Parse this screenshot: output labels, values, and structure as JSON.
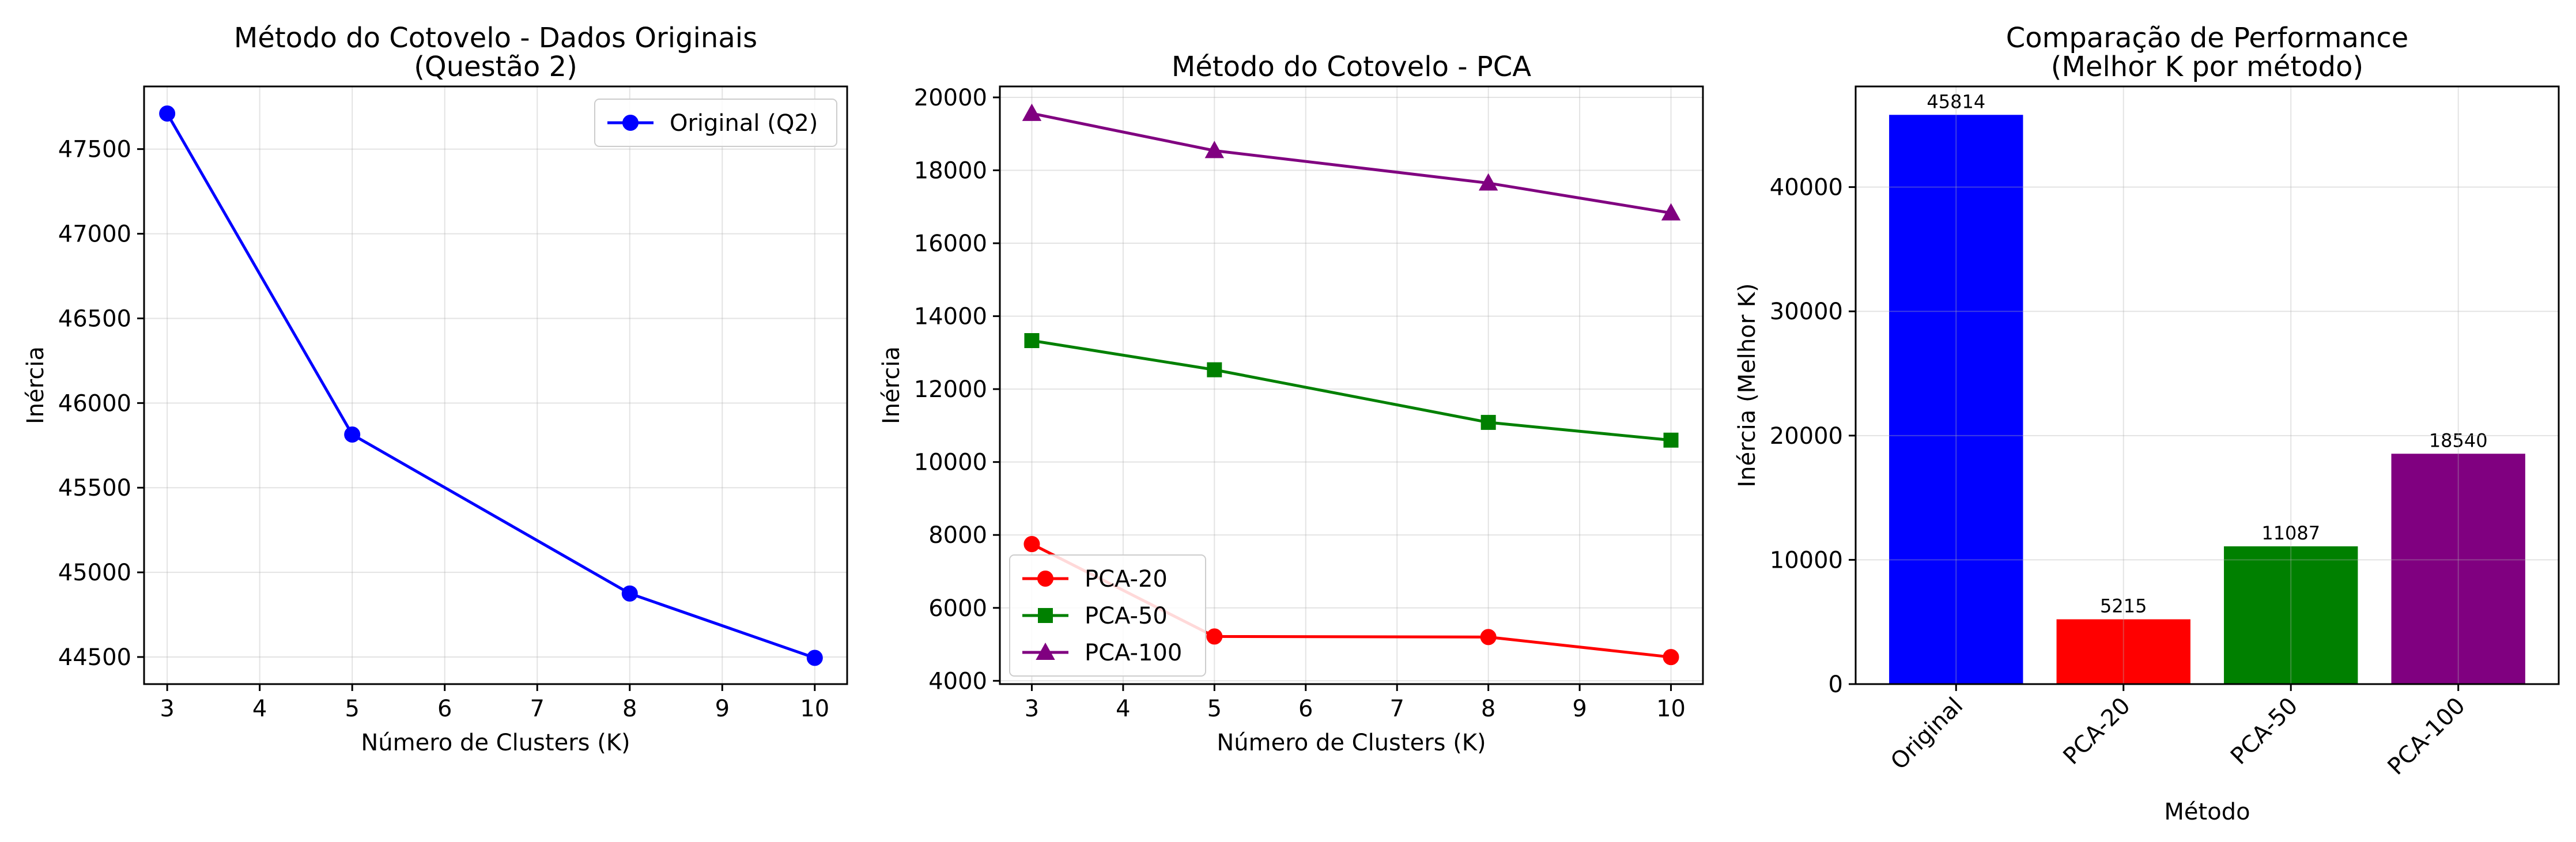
{
  "chart_data": [
    {
      "type": "line",
      "title_lines": [
        "Método do Cotovelo - Dados Originais",
        "(Questão 2)"
      ],
      "xlabel": "Número de Clusters (K)",
      "ylabel": "Inércia",
      "xlim": [
        2.75,
        10.35
      ],
      "ylim": [
        44340,
        47870
      ],
      "xticks": [
        3,
        4,
        5,
        6,
        7,
        8,
        9,
        10
      ],
      "yticks": [
        44500,
        45000,
        45500,
        46000,
        46500,
        47000,
        47500
      ],
      "grid": true,
      "legend_position": "upper right",
      "x": [
        3,
        5,
        8,
        10
      ],
      "series": [
        {
          "name": "Original (Q2)",
          "values": [
            47710,
            45814,
            44875,
            44495
          ],
          "color": "#0000ff",
          "marker": "circle"
        }
      ]
    },
    {
      "type": "line",
      "title_lines": [
        "Método do Cotovelo - PCA"
      ],
      "xlabel": "Número de Clusters (K)",
      "ylabel": "Inércia",
      "xlim": [
        2.65,
        10.35
      ],
      "ylim": [
        3910,
        20300
      ],
      "xticks": [
        3,
        4,
        5,
        6,
        7,
        8,
        9,
        10
      ],
      "yticks": [
        4000,
        6000,
        8000,
        10000,
        12000,
        14000,
        16000,
        18000,
        20000
      ],
      "grid": true,
      "legend_position": "lower left",
      "x": [
        3,
        5,
        8,
        10
      ],
      "series": [
        {
          "name": "PCA-20",
          "values": [
            7750,
            5215,
            5200,
            4650
          ],
          "color": "#ff0000",
          "marker": "circle"
        },
        {
          "name": "PCA-50",
          "values": [
            13330,
            12530,
            11087,
            10600
          ],
          "color": "#008000",
          "marker": "square"
        },
        {
          "name": "PCA-100",
          "values": [
            19560,
            18540,
            17650,
            16830
          ],
          "color": "#800080",
          "marker": "triangle"
        }
      ]
    },
    {
      "type": "bar",
      "title_lines": [
        "Comparação de Performance",
        "(Melhor K por método)"
      ],
      "xlabel": "Método",
      "ylabel": "Inércia (Melhor K)",
      "ylim": [
        0,
        48100
      ],
      "yticks": [
        0,
        10000,
        20000,
        30000,
        40000
      ],
      "grid": true,
      "categories": [
        "Original",
        "PCA-20",
        "PCA-50",
        "PCA-100"
      ],
      "values": [
        45814,
        5215,
        11087,
        18540
      ],
      "colors": [
        "#0000ff",
        "#ff0000",
        "#008000",
        "#800080"
      ],
      "value_labels": [
        "45814",
        "5215",
        "11087",
        "18540"
      ]
    }
  ]
}
